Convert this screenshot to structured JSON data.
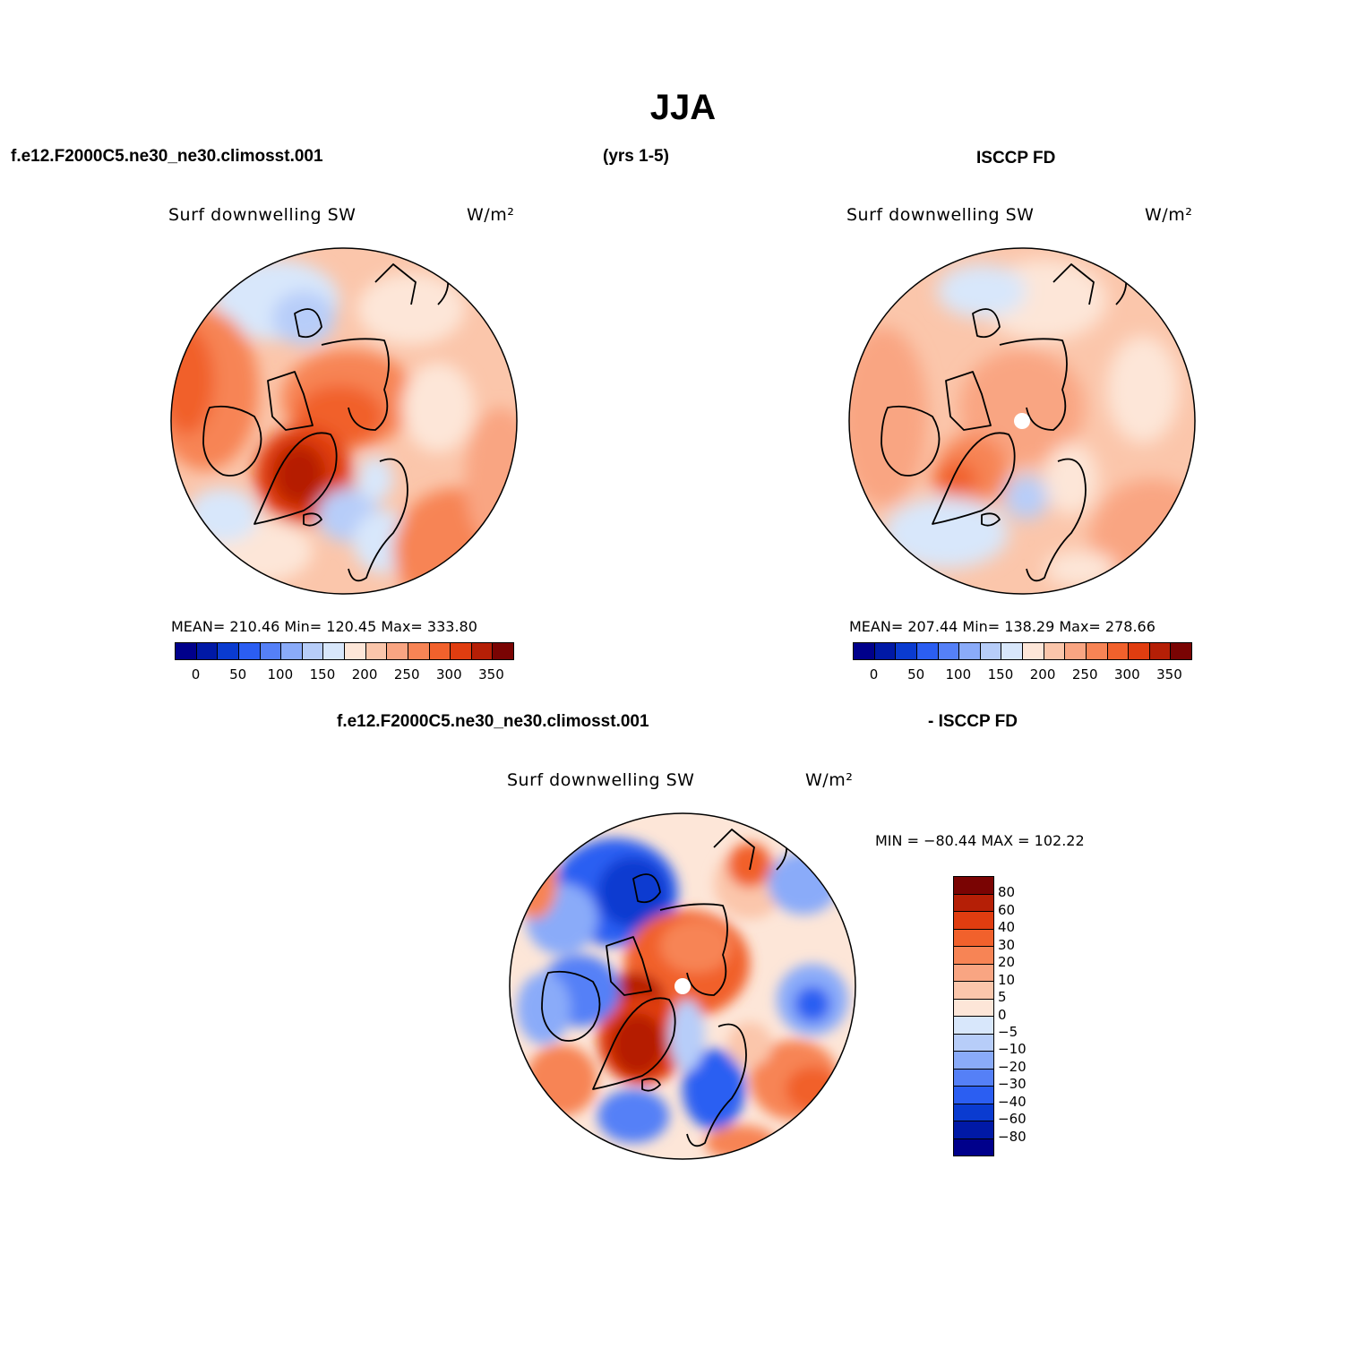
{
  "title": "JJA",
  "top_header": {
    "case": "f.e12.F2000C5.ne30_ne30.climosst.001",
    "years": "(yrs 1-5)",
    "obs": "ISCCP FD"
  },
  "diff_header": {
    "case": "f.e12.F2000C5.ne30_ne30.climosst.001",
    "obs": "- ISCCP FD"
  },
  "colors": {
    "abs_scale": [
      "#00008b",
      "#0019a6",
      "#0a3bd0",
      "#2b5ef2",
      "#5580f7",
      "#8aabf9",
      "#b7cdf9",
      "#d8e7fb",
      "#fde6d8",
      "#fbc6ab",
      "#f9a582",
      "#f78455",
      "#f1612c",
      "#e03d10",
      "#b51f06",
      "#7a0403"
    ],
    "diff_scale": [
      "#7a0403",
      "#b51f06",
      "#e03d10",
      "#f1612c",
      "#f78455",
      "#f9a582",
      "#fbc6ab",
      "#fde6d8",
      "#d8e7fb",
      "#b7cdf9",
      "#8aabf9",
      "#5580f7",
      "#2b5ef2",
      "#0a3bd0",
      "#0019a6",
      "#00008b"
    ]
  },
  "panels": [
    {
      "name": "model",
      "title": "Surf downwelling SW",
      "units": "W/m²",
      "stats": "MEAN= 210.46   Min= 120.45   Max= 333.80",
      "ticks": [
        "0",
        "50",
        "100",
        "150",
        "200",
        "250",
        "300",
        "350"
      ]
    },
    {
      "name": "obs",
      "title": "Surf downwelling SW",
      "units": "W/m²",
      "stats": "MEAN= 207.44   Min= 138.29   Max= 278.66",
      "ticks": [
        "0",
        "50",
        "100",
        "150",
        "200",
        "250",
        "300",
        "350"
      ]
    },
    {
      "name": "difference",
      "title": "Surf downwelling SW",
      "units": "W/m²",
      "stats": "MIN = −80.44  MAX = 102.22",
      "ticks": [
        "80",
        "60",
        "40",
        "30",
        "20",
        "10",
        "5",
        "0",
        "−5",
        "−10",
        "−20",
        "−30",
        "−40",
        "−60",
        "−80"
      ]
    }
  ]
}
